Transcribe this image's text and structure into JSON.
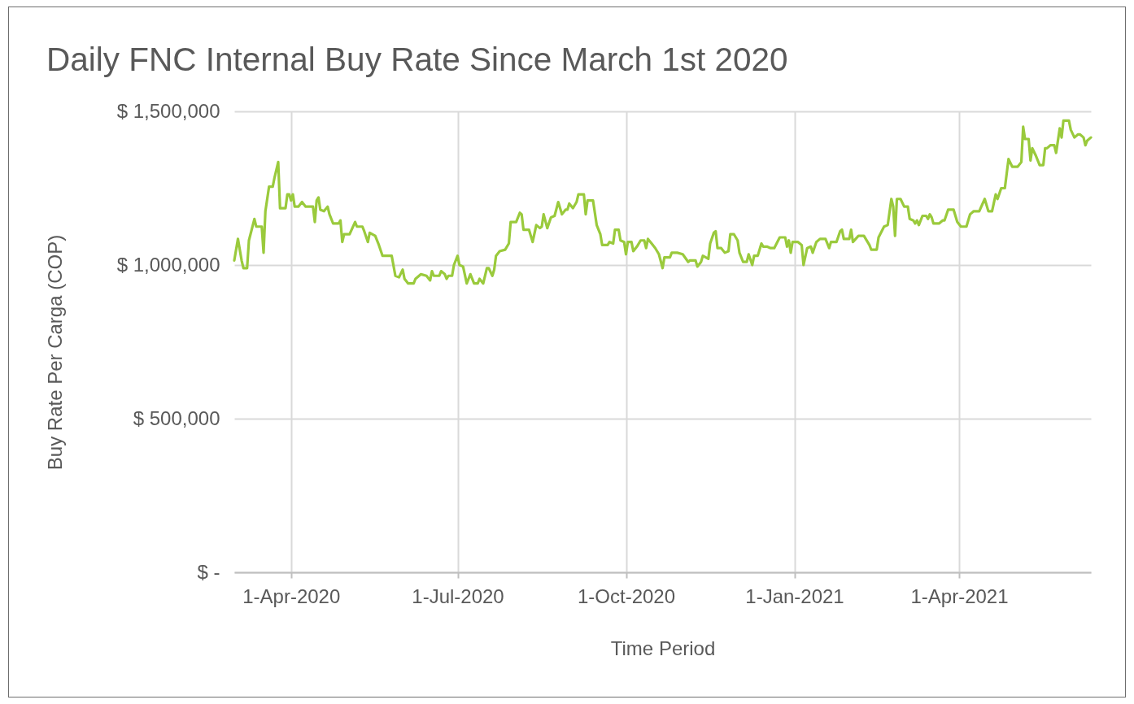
{
  "chart_data": {
    "type": "line",
    "title": "Daily FNC Internal Buy Rate Since March 1st 2020",
    "xlabel": "Time Period",
    "ylabel": "Buy Rate Per Carga (COP)",
    "x": [
      "2020-03-01",
      "2020-03-03",
      "2020-03-05",
      "2020-03-06",
      "2020-03-08",
      "2020-03-09",
      "2020-03-12",
      "2020-03-13",
      "2020-03-16",
      "2020-03-17",
      "2020-03-18",
      "2020-03-20",
      "2020-03-22",
      "2020-03-23",
      "2020-03-25",
      "2020-03-26",
      "2020-03-29",
      "2020-03-30",
      "2020-03-31",
      "2020-04-01",
      "2020-04-02",
      "2020-04-03",
      "2020-04-05",
      "2020-04-07",
      "2020-04-09",
      "2020-04-13",
      "2020-04-14",
      "2020-04-15",
      "2020-04-16",
      "2020-04-17",
      "2020-04-19",
      "2020-04-21",
      "2020-04-22",
      "2020-04-24",
      "2020-04-27",
      "2020-04-28",
      "2020-04-29",
      "2020-04-30",
      "2020-05-03",
      "2020-05-06",
      "2020-05-07",
      "2020-05-10",
      "2020-05-11",
      "2020-05-13",
      "2020-05-14",
      "2020-05-17",
      "2020-05-19",
      "2020-05-21",
      "2020-05-22",
      "2020-05-26",
      "2020-05-28",
      "2020-05-30",
      "2020-06-01",
      "2020-06-02",
      "2020-06-04",
      "2020-06-07",
      "2020-06-08",
      "2020-06-11",
      "2020-06-14",
      "2020-06-16",
      "2020-06-17",
      "2020-06-18",
      "2020-06-21",
      "2020-06-22",
      "2020-06-24",
      "2020-06-25",
      "2020-06-26",
      "2020-06-28",
      "2020-06-29",
      "2020-07-01",
      "2020-07-02",
      "2020-07-04",
      "2020-07-06",
      "2020-07-08",
      "2020-07-10",
      "2020-07-12",
      "2020-07-13",
      "2020-07-15",
      "2020-07-17",
      "2020-07-18",
      "2020-07-20",
      "2020-07-21",
      "2020-07-22",
      "2020-07-24",
      "2020-07-27",
      "2020-07-29",
      "2020-07-30",
      "2020-08-02",
      "2020-08-04",
      "2020-08-05",
      "2020-08-06",
      "2020-08-09",
      "2020-08-11",
      "2020-08-13",
      "2020-08-15",
      "2020-08-16",
      "2020-08-17",
      "2020-08-19",
      "2020-08-21",
      "2020-08-23",
      "2020-08-25",
      "2020-08-27",
      "2020-08-29",
      "2020-08-30",
      "2020-08-31",
      "2020-09-02",
      "2020-09-04",
      "2020-09-05",
      "2020-09-08",
      "2020-09-09",
      "2020-09-10",
      "2020-09-13",
      "2020-09-15",
      "2020-09-17",
      "2020-09-18",
      "2020-09-21",
      "2020-09-22",
      "2020-09-24",
      "2020-09-25",
      "2020-09-27",
      "2020-09-28",
      "2020-09-30",
      "2020-10-01",
      "2020-10-02",
      "2020-10-04",
      "2020-10-05",
      "2020-10-07",
      "2020-10-09",
      "2020-10-11",
      "2020-10-12",
      "2020-10-13",
      "2020-10-15",
      "2020-10-17",
      "2020-10-19",
      "2020-10-21",
      "2020-10-22",
      "2020-10-25",
      "2020-10-26",
      "2020-10-29",
      "2020-11-01",
      "2020-11-04",
      "2020-11-05",
      "2020-11-08",
      "2020-11-09",
      "2020-11-11",
      "2020-11-12",
      "2020-11-15",
      "2020-11-16",
      "2020-11-18",
      "2020-11-19",
      "2020-11-20",
      "2020-11-22",
      "2020-11-24",
      "2020-11-26",
      "2020-11-27",
      "2020-11-29",
      "2020-12-01",
      "2020-12-02",
      "2020-12-04",
      "2020-12-06",
      "2020-12-07",
      "2020-12-09",
      "2020-12-10",
      "2020-12-12",
      "2020-12-14",
      "2020-12-15",
      "2020-12-17",
      "2020-12-19",
      "2020-12-21",
      "2020-12-24",
      "2020-12-27",
      "2020-12-28",
      "2020-12-29",
      "2020-12-30",
      "2020-12-31",
      "2021-01-03",
      "2021-01-05",
      "2021-01-06",
      "2021-01-08",
      "2021-01-10",
      "2021-01-11",
      "2021-01-13",
      "2021-01-15",
      "2021-01-18",
      "2021-01-20",
      "2021-01-21",
      "2021-01-24",
      "2021-01-26",
      "2021-01-27",
      "2021-01-28",
      "2021-01-31",
      "2021-02-01",
      "2021-02-02",
      "2021-02-05",
      "2021-02-08",
      "2021-02-11",
      "2021-02-12",
      "2021-02-15",
      "2021-02-16",
      "2021-02-19",
      "2021-02-21",
      "2021-02-23",
      "2021-02-24",
      "2021-02-25",
      "2021-02-26",
      "2021-02-28",
      "2021-03-02",
      "2021-03-04",
      "2021-03-05",
      "2021-03-07",
      "2021-03-08",
      "2021-03-09",
      "2021-03-10",
      "2021-03-12",
      "2021-03-14",
      "2021-03-15",
      "2021-03-16",
      "2021-03-17",
      "2021-03-18",
      "2021-03-21",
      "2021-03-23",
      "2021-03-24",
      "2021-03-26",
      "2021-03-29",
      "2021-03-31",
      "2021-04-02",
      "2021-04-05",
      "2021-04-07",
      "2021-04-09",
      "2021-04-12",
      "2021-04-15",
      "2021-04-17",
      "2021-04-19",
      "2021-04-21",
      "2021-04-22",
      "2021-04-24",
      "2021-04-26",
      "2021-04-28",
      "2021-04-30",
      "2021-05-03",
      "2021-05-05",
      "2021-05-06",
      "2021-05-07",
      "2021-05-09",
      "2021-05-10",
      "2021-05-11",
      "2021-05-13",
      "2021-05-15",
      "2021-05-17",
      "2021-05-18",
      "2021-05-19",
      "2021-05-21",
      "2021-05-23",
      "2021-05-24",
      "2021-05-26",
      "2021-05-27",
      "2021-05-28",
      "2021-05-31",
      "2021-06-01",
      "2021-06-03",
      "2021-06-05",
      "2021-06-06",
      "2021-06-08",
      "2021-06-09",
      "2021-06-10",
      "2021-06-12"
    ],
    "series": [
      {
        "color": "#9aca3c",
        "values": [
          1015000,
          1085000,
          1015000,
          990000,
          990000,
          1080000,
          1150000,
          1125000,
          1125000,
          1040000,
          1175000,
          1255000,
          1255000,
          1285000,
          1335000,
          1185000,
          1185000,
          1230000,
          1230000,
          1210000,
          1230000,
          1190000,
          1190000,
          1205000,
          1190000,
          1190000,
          1140000,
          1210000,
          1220000,
          1180000,
          1175000,
          1190000,
          1165000,
          1135000,
          1135000,
          1145000,
          1075000,
          1100000,
          1100000,
          1140000,
          1125000,
          1125000,
          1110000,
          1075000,
          1105000,
          1095000,
          1065000,
          1030000,
          1030000,
          1030000,
          965000,
          960000,
          985000,
          955000,
          940000,
          940000,
          955000,
          970000,
          965000,
          950000,
          980000,
          965000,
          965000,
          980000,
          970000,
          955000,
          965000,
          965000,
          1000000,
          1030000,
          1000000,
          995000,
          940000,
          970000,
          940000,
          940000,
          955000,
          940000,
          990000,
          990000,
          965000,
          985000,
          1030000,
          1045000,
          1050000,
          1070000,
          1140000,
          1140000,
          1170000,
          1165000,
          1115000,
          1115000,
          1075000,
          1130000,
          1120000,
          1125000,
          1165000,
          1120000,
          1155000,
          1160000,
          1205000,
          1165000,
          1180000,
          1180000,
          1200000,
          1185000,
          1205000,
          1230000,
          1230000,
          1165000,
          1210000,
          1210000,
          1130000,
          1100000,
          1065000,
          1065000,
          1075000,
          1070000,
          1115000,
          1115000,
          1080000,
          1075000,
          1035000,
          1075000,
          1075000,
          1045000,
          1060000,
          1080000,
          1080000,
          1055000,
          1085000,
          1070000,
          1055000,
          1035000,
          990000,
          1025000,
          1025000,
          1040000,
          1040000,
          1035000,
          1010000,
          1015000,
          1015000,
          995000,
          1010000,
          1030000,
          1020000,
          1070000,
          1105000,
          1110000,
          1055000,
          1055000,
          1040000,
          1045000,
          1100000,
          1100000,
          1080000,
          1040000,
          1010000,
          1010000,
          1035000,
          1000000,
          1030000,
          1030000,
          1070000,
          1060000,
          1060000,
          1055000,
          1055000,
          1090000,
          1090000,
          1060000,
          1080000,
          1040000,
          1075000,
          1075000,
          1065000,
          1000000,
          1055000,
          1060000,
          1040000,
          1075000,
          1085000,
          1085000,
          1055000,
          1075000,
          1075000,
          1110000,
          1115000,
          1085000,
          1085000,
          1115000,
          1075000,
          1095000,
          1095000,
          1065000,
          1050000,
          1050000,
          1090000,
          1125000,
          1130000,
          1215000,
          1190000,
          1095000,
          1215000,
          1215000,
          1190000,
          1190000,
          1150000,
          1145000,
          1135000,
          1145000,
          1130000,
          1160000,
          1160000,
          1150000,
          1165000,
          1155000,
          1135000,
          1135000,
          1145000,
          1145000,
          1180000,
          1180000,
          1140000,
          1125000,
          1125000,
          1165000,
          1175000,
          1175000,
          1215000,
          1175000,
          1175000,
          1230000,
          1215000,
          1250000,
          1250000,
          1345000,
          1320000,
          1320000,
          1335000,
          1450000,
          1410000,
          1410000,
          1340000,
          1380000,
          1355000,
          1325000,
          1325000,
          1380000,
          1380000,
          1390000,
          1390000,
          1365000,
          1445000,
          1415000,
          1470000,
          1470000,
          1440000,
          1415000,
          1425000,
          1425000,
          1415000,
          1390000,
          1405000,
          1415000
        ]
      }
    ],
    "xlim": [
      "2020-03-01",
      "2021-06-12"
    ],
    "xticks": [
      {
        "value": "2020-04-01",
        "label": "1-Apr-2020"
      },
      {
        "value": "2020-07-01",
        "label": "1-Jul-2020"
      },
      {
        "value": "2020-10-01",
        "label": "1-Oct-2020"
      },
      {
        "value": "2021-01-01",
        "label": "1-Jan-2021"
      },
      {
        "value": "2021-04-01",
        "label": "1-Apr-2021"
      }
    ],
    "ylim": [
      0,
      1500000
    ],
    "yticks": [
      {
        "value": 0,
        "label": "$ -"
      },
      {
        "value": 500000,
        "label": "$ 500,000"
      },
      {
        "value": 1000000,
        "label": "$ 1,000,000"
      },
      {
        "value": 1500000,
        "label": "$ 1,500,000"
      }
    ],
    "grid": true
  }
}
